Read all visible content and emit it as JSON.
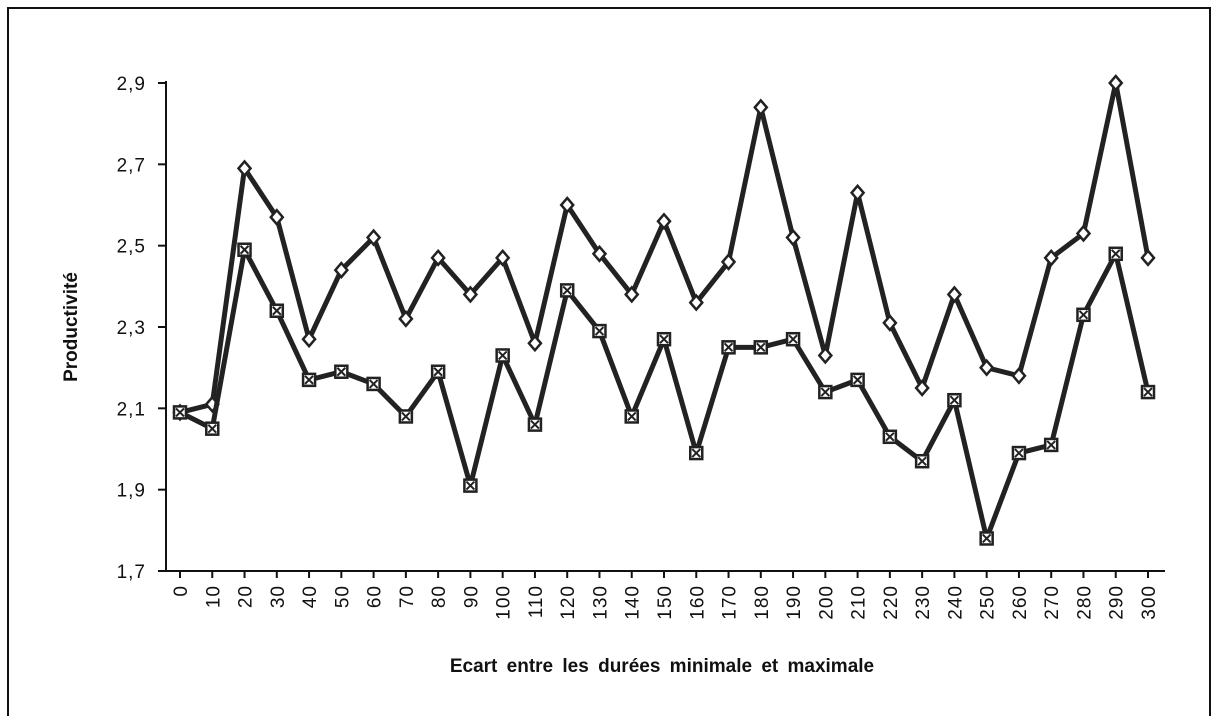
{
  "chart_data": {
    "type": "line",
    "xlabel": "Ecart entre les durées minimale et maximale",
    "ylabel": "Productivité",
    "categories": [
      "0",
      "10",
      "20",
      "30",
      "40",
      "50",
      "60",
      "70",
      "80",
      "90",
      "100",
      "110",
      "120",
      "130",
      "140",
      "150",
      "160",
      "170",
      "180",
      "190",
      "200",
      "210",
      "220",
      "230",
      "240",
      "250",
      "260",
      "270",
      "280",
      "290",
      "300"
    ],
    "series": [
      {
        "color": "#222222",
        "marker": "diamond",
        "values": [
          2.09,
          2.11,
          2.69,
          2.57,
          2.27,
          2.44,
          2.52,
          2.32,
          2.47,
          2.38,
          2.47,
          2.26,
          2.6,
          2.48,
          2.38,
          2.56,
          2.36,
          2.46,
          2.84,
          2.52,
          2.23,
          2.63,
          2.31,
          2.15,
          2.38,
          2.2,
          2.18,
          2.47,
          2.53,
          2.9,
          2.47
        ]
      },
      {
        "color": "#222222",
        "marker": "square-x",
        "values": [
          2.09,
          2.05,
          2.49,
          2.34,
          2.17,
          2.19,
          2.16,
          2.08,
          2.19,
          1.91,
          2.23,
          2.06,
          2.39,
          2.29,
          2.08,
          2.27,
          1.99,
          2.25,
          2.25,
          2.27,
          2.14,
          2.17,
          2.03,
          1.97,
          2.12,
          1.78,
          1.99,
          2.01,
          2.33,
          2.48,
          2.14
        ]
      }
    ],
    "ylim": [
      1.7,
      2.9
    ],
    "yticks": [
      {
        "value": 1.7,
        "label": "1,7"
      },
      {
        "value": 1.9,
        "label": "1,9"
      },
      {
        "value": 2.1,
        "label": "2,1"
      },
      {
        "value": 2.3,
        "label": "2,3"
      },
      {
        "value": 2.5,
        "label": "2,5"
      },
      {
        "value": 2.7,
        "label": "2,7"
      },
      {
        "value": 2.9,
        "label": "2,9"
      }
    ],
    "grid": false
  }
}
